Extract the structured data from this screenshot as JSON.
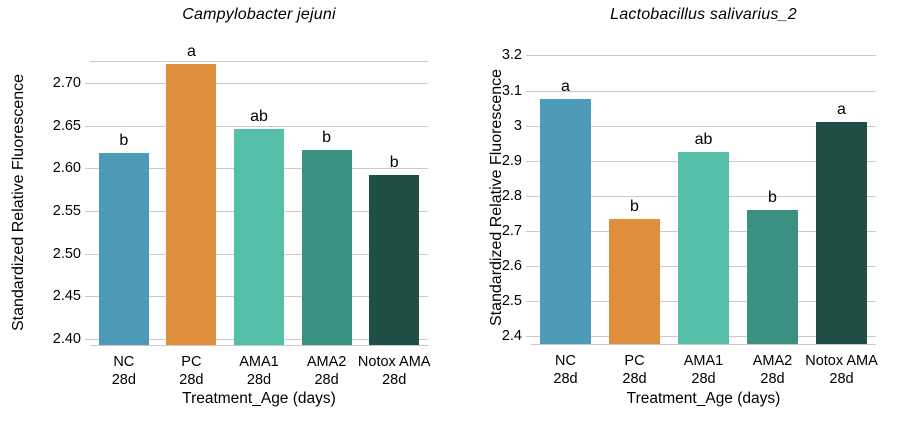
{
  "figure": {
    "background": "#ffffff",
    "grid_color": "#cbcbcb",
    "axis_line_color": "#c9c9c9",
    "text_color": "#000000"
  },
  "chart_data": [
    {
      "type": "bar",
      "title": "Campylobacter jejuni",
      "xlabel": "Treatment_Age (days)",
      "ylabel": "Standardized Relative Fluorescence",
      "categories": [
        [
          "NC",
          "28d"
        ],
        [
          "PC",
          "28d"
        ],
        [
          "AMA1",
          "28d"
        ],
        [
          "AMA2",
          "28d"
        ],
        [
          "Notox AMA",
          "28d"
        ]
      ],
      "values": [
        2.618,
        2.722,
        2.646,
        2.622,
        2.592
      ],
      "sig_letters": [
        "b",
        "a",
        "ab",
        "b",
        "b"
      ],
      "bar_colors": [
        "#4d9bb8",
        "#e0903c",
        "#55bfa8",
        "#3a9181",
        "#1f4f44"
      ],
      "ylim": [
        2.393,
        2.7247
      ],
      "yticks": [
        2.4,
        2.45,
        2.5,
        2.55,
        2.6,
        2.65,
        2.7
      ],
      "ytick_labels": [
        "2.40",
        "2.45",
        "2.50",
        "2.55",
        "2.60",
        "2.65",
        "2.70"
      ],
      "grid": true,
      "legend": false,
      "top_border": true
    },
    {
      "type": "bar",
      "title": "Lactobacillus salivarius_2",
      "xlabel": "Treatment_Age (days)",
      "ylabel": "Standardized Relative Fluorescence",
      "categories": [
        [
          "NC",
          "28d"
        ],
        [
          "PC",
          "28d"
        ],
        [
          "AMA1",
          "28d"
        ],
        [
          "AMA2",
          "28d"
        ],
        [
          "Notox AMA",
          "28d"
        ]
      ],
      "values": [
        3.077,
        2.734,
        2.926,
        2.761,
        3.011
      ],
      "sig_letters": [
        "a",
        "b",
        "ab",
        "b",
        "a"
      ],
      "bar_colors": [
        "#4d9bb8",
        "#e0903c",
        "#55bfa8",
        "#3a9181",
        "#1f4f44"
      ],
      "ylim": [
        2.378,
        3.2156
      ],
      "yticks": [
        2.4,
        2.5,
        2.6,
        2.7,
        2.8,
        2.9,
        3.0,
        3.1,
        3.2
      ],
      "ytick_labels": [
        "2.4",
        "2.5",
        "2.6",
        "2.7",
        "2.8",
        "2.9",
        "3",
        "3.1",
        "3.2"
      ],
      "grid": true,
      "legend": false,
      "top_border": false
    }
  ]
}
